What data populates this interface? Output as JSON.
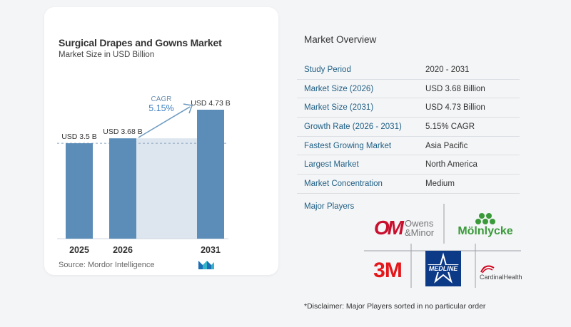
{
  "chart": {
    "title": "Surgical Drapes and Gowns Market",
    "subtitle": "Market Size in USD Billion",
    "source": "Source:  Mordor Intelligence",
    "cagr_label": "CAGR",
    "cagr_value": "5.15%"
  },
  "chart_data": {
    "type": "bar",
    "categories": [
      "2025",
      "2026",
      "2031"
    ],
    "values": [
      3.5,
      3.68,
      4.73
    ],
    "value_labels": [
      "USD 3.5 B",
      "USD 3.68 B",
      "USD 4.73 B"
    ],
    "title": "Surgical Drapes and Gowns Market",
    "subtitle": "Market Size in USD Billion",
    "xlabel": "",
    "ylabel": "",
    "annotation": "CAGR 5.15%",
    "ylim": [
      0,
      4.73
    ],
    "colors": {
      "bar": "#5b8db8",
      "highlight": "#dde6ef",
      "arrow": "#6f9cc2",
      "cagr_text": "#3d7fc0"
    }
  },
  "overview": {
    "title": "Market Overview",
    "rows": [
      {
        "key": "Study Period",
        "value": "2020 - 2031"
      },
      {
        "key": "Market Size (2026)",
        "value": "USD 3.68 Billion"
      },
      {
        "key": "Market Size (2031)",
        "value": "USD 4.73 Billion"
      },
      {
        "key": "Growth Rate (2026 - 2031)",
        "value": "5.15% CAGR"
      },
      {
        "key": "Fastest Growing Market",
        "value": "Asia Pacific"
      },
      {
        "key": "Largest Market",
        "value": "North America"
      },
      {
        "key": "Market Concentration",
        "value": "Medium"
      }
    ],
    "players_label": "Major Players",
    "players": {
      "owens_minor_line1": "Owens",
      "owens_minor_line2": "&Minor",
      "om_mark": "OM",
      "molnlycke": "Mölnlycke",
      "three_m": "3M",
      "medline": "MEDLINE",
      "cardinal": "CardinalHealth"
    },
    "disclaimer": "*Disclaimer: Major Players sorted in no particular order"
  }
}
